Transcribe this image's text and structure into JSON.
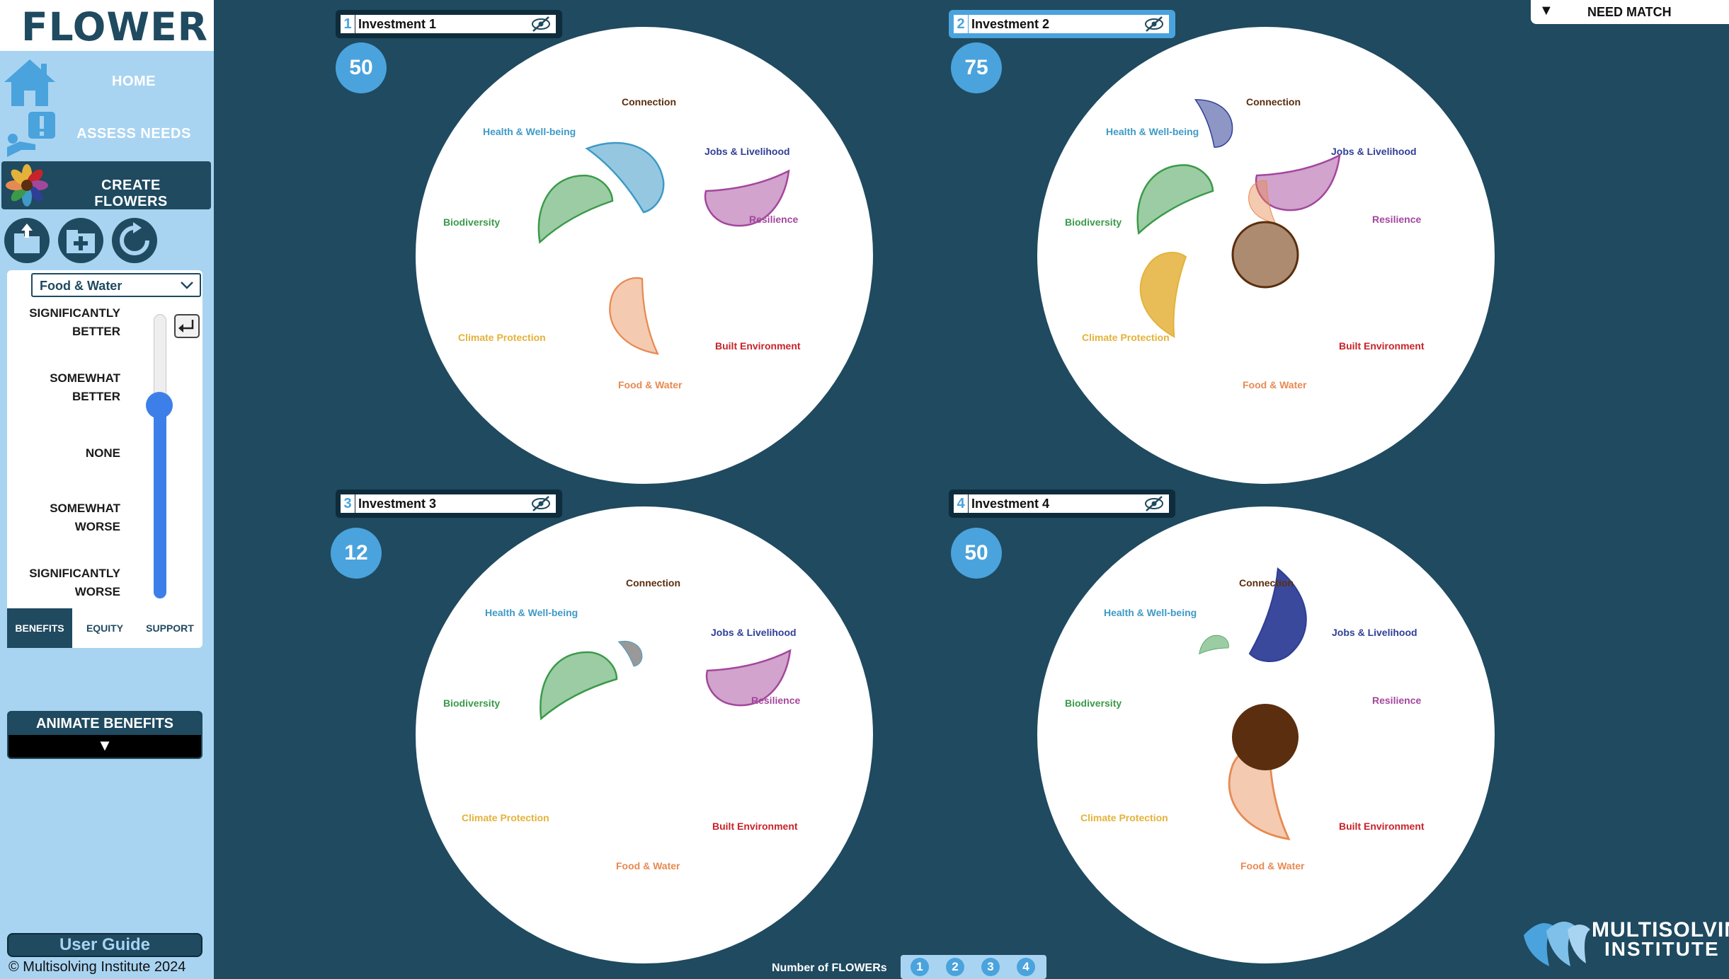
{
  "brand": {
    "title": "FLOWER"
  },
  "nav": {
    "home": "HOME",
    "assess": "ASSESS NEEDS",
    "create": "CREATE FLOWERS"
  },
  "tools": {
    "icons": [
      "export-icon",
      "new-folder-icon",
      "refresh-icon"
    ]
  },
  "panel": {
    "category": "Food & Water",
    "scale": [
      [
        "SIGNIFICANTLY",
        "BETTER"
      ],
      [
        "SOMEWHAT",
        "BETTER"
      ],
      [
        "NONE",
        ""
      ],
      [
        "SOMEWHAT",
        "WORSE"
      ],
      [
        "SIGNIFICANTLY",
        "WORSE"
      ]
    ],
    "slider_level": "SOMEWHAT BETTER",
    "tabs": [
      "BENEFITS",
      "EQUITY",
      "SUPPORT"
    ],
    "active_tab": "BENEFITS"
  },
  "animate": {
    "label": "ANIMATE BENEFITS",
    "arrow": "▼"
  },
  "footer": {
    "user_guide": "User Guide",
    "copyright": "© Multisolving Institute 2024"
  },
  "need_match": {
    "arrow": "▼",
    "label": "NEED MATCH"
  },
  "count": {
    "label": "Number of FLOWERs",
    "options": [
      "1",
      "2",
      "3",
      "4"
    ]
  },
  "logo": {
    "line1": "MULTISOLVING",
    "line2": "INSTITUTE"
  },
  "categories": {
    "connection": "Connection",
    "health": "Health & Well-being",
    "jobs": "Jobs & Livelihood",
    "resilience": "Resilience",
    "built": "Built Environment",
    "food": "Food & Water",
    "climate": "Climate Protection",
    "bio": "Biodiversity"
  },
  "colors": {
    "connection": "#5a2e0e",
    "health": "#3e9ac6",
    "jobs": "#2f3f96",
    "resilience": "#a3479c",
    "built": "#c8232a",
    "food": "#e78a52",
    "climate": "#e4b23a",
    "bio": "#3a9a4a",
    "accent": "#4aa3dc",
    "navy": "#1f4a60"
  },
  "investments": [
    {
      "num": "1",
      "name": "Investment 1",
      "score": "50",
      "selected": false
    },
    {
      "num": "2",
      "name": "Investment 2",
      "score": "75",
      "selected": true
    },
    {
      "num": "3",
      "name": "Investment 3",
      "score": "12",
      "selected": false
    },
    {
      "num": "4",
      "name": "Investment 4",
      "score": "50",
      "selected": false
    }
  ]
}
